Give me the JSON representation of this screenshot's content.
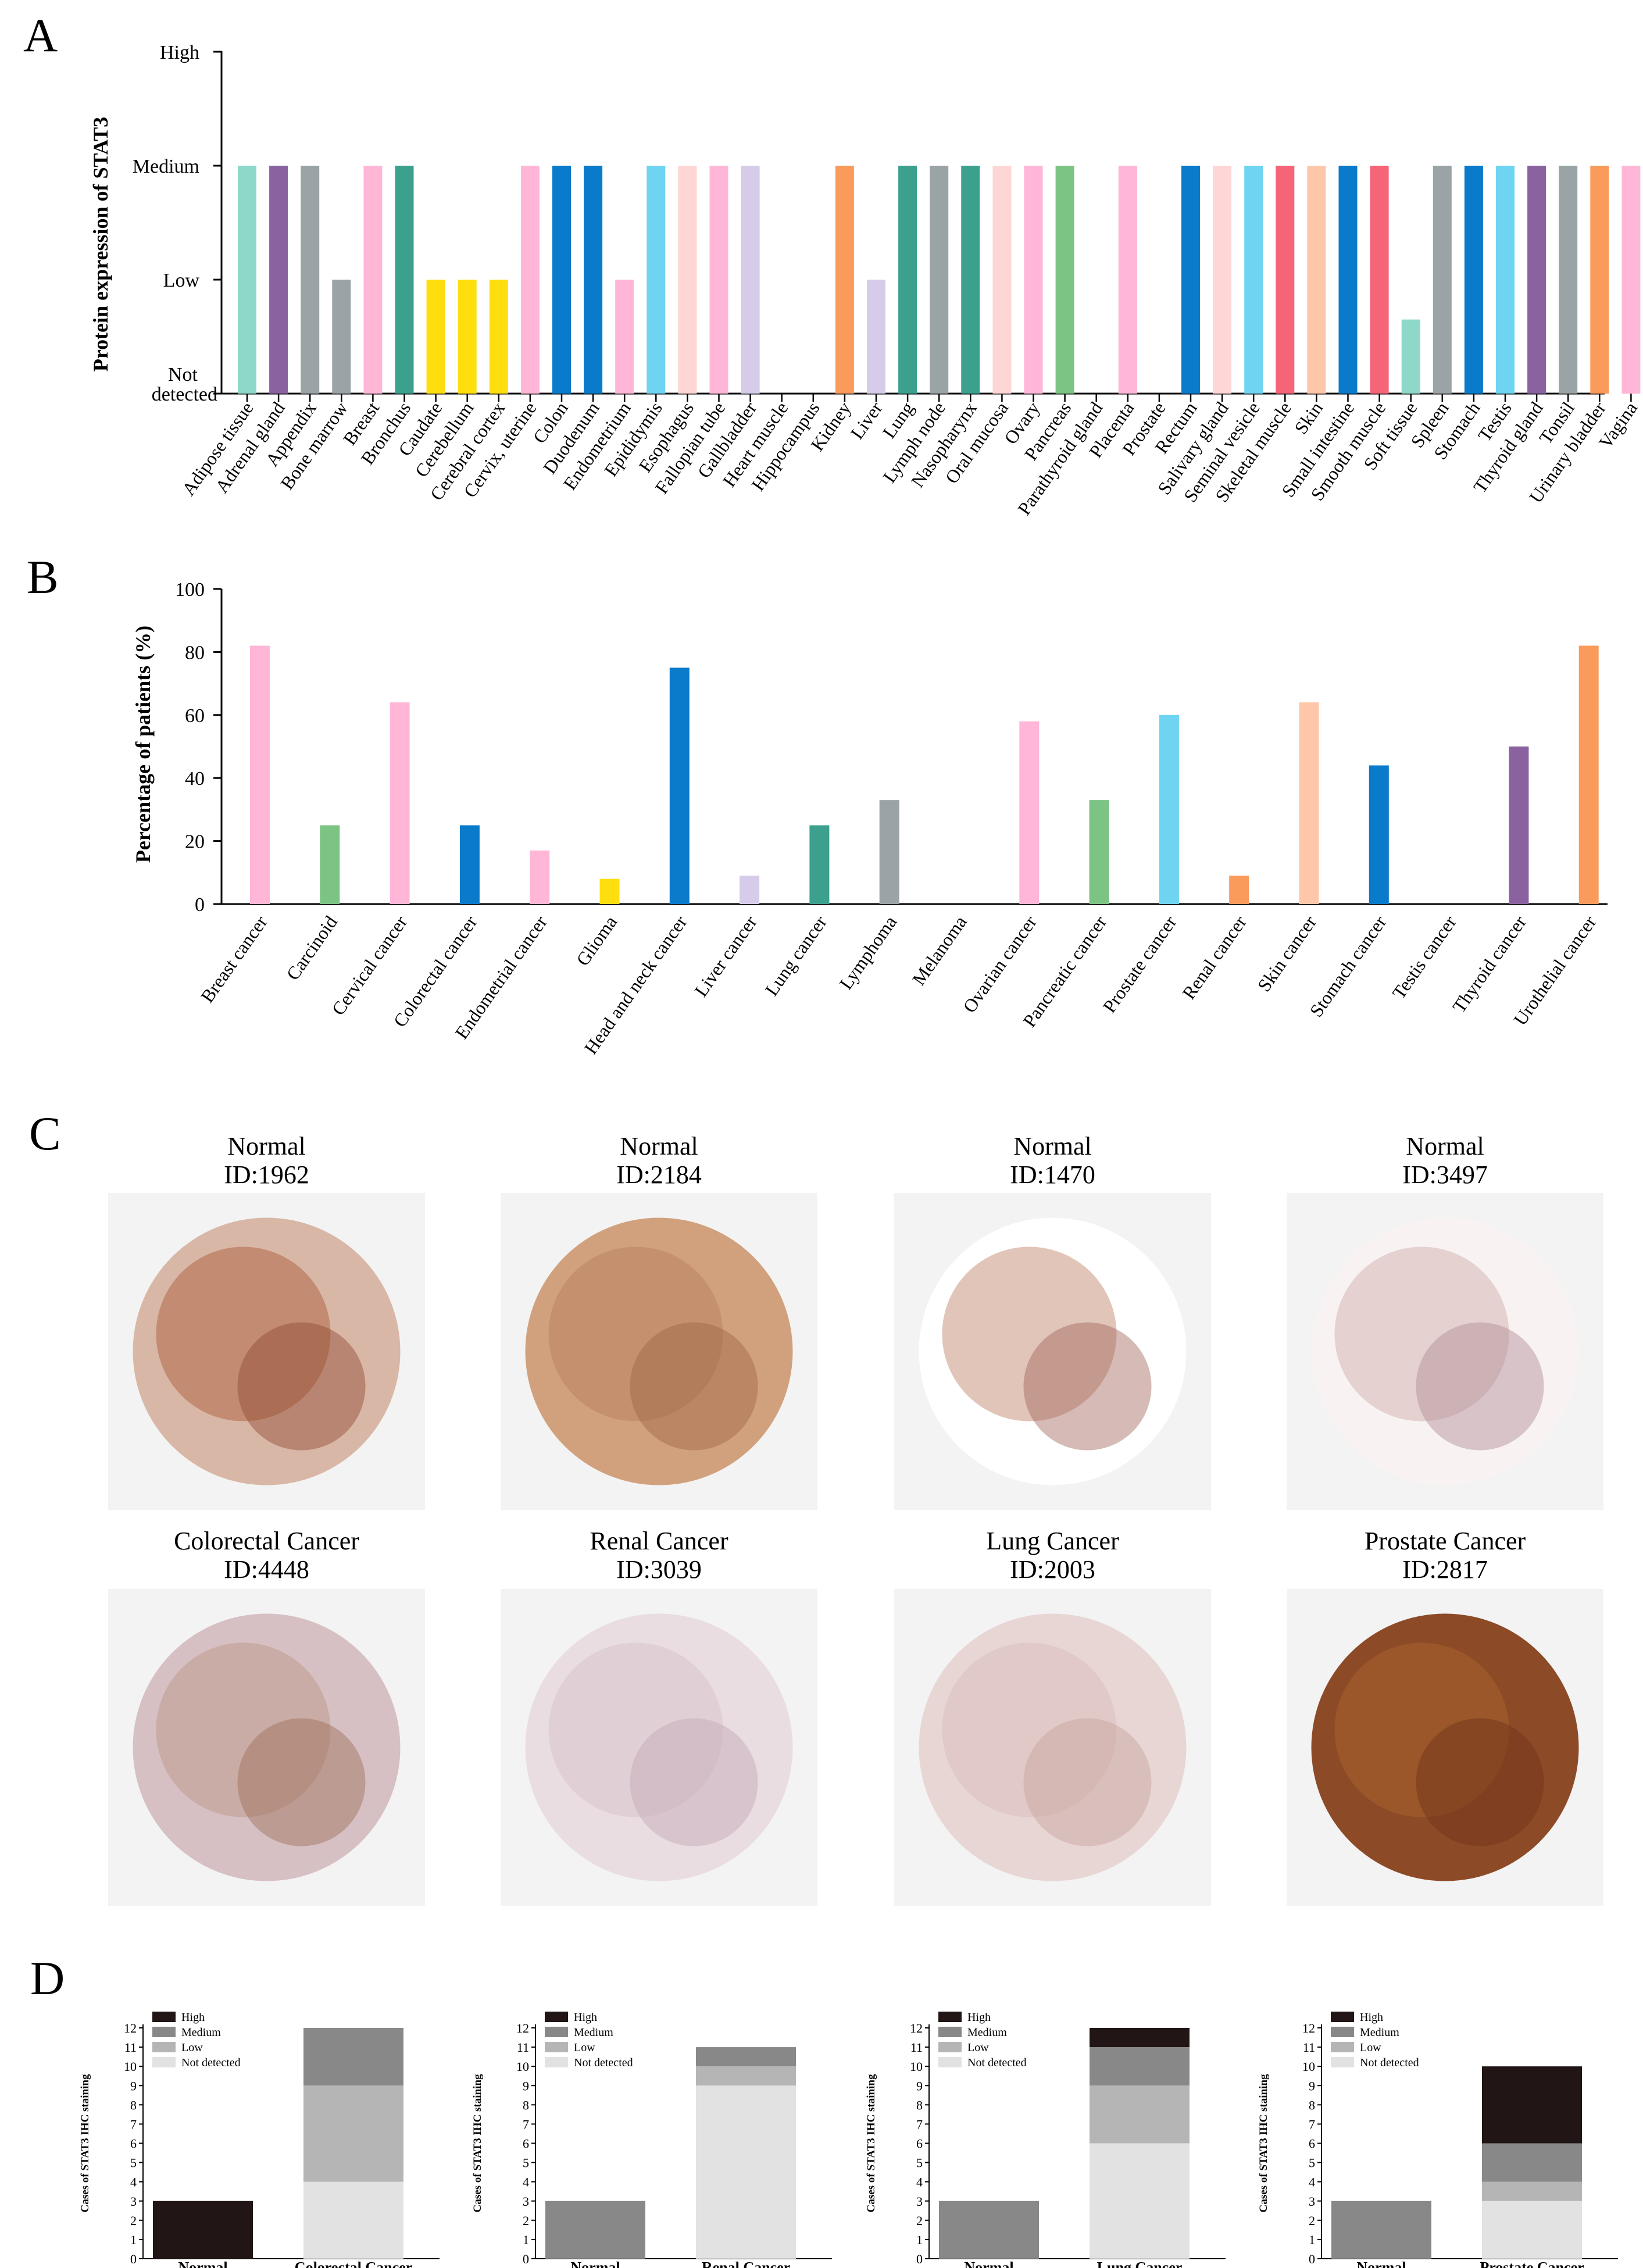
{
  "panel_labels": {
    "a": "A",
    "b": "B",
    "c": "C",
    "d": "D"
  },
  "colors": {
    "teal_light": "#8dd8c8",
    "purple": "#8b62a0",
    "gray": "#9aa3a5",
    "pink": "#ffb6d7",
    "green_teal": "#3ba08e",
    "yellow": "#ffde10",
    "blue": "#0a7acb",
    "sky": "#6fd4f2",
    "peach": "#ffd6d6",
    "lavender": "#d6cbe8",
    "orange": "#fa9b5c",
    "green": "#7cc484",
    "red": "#f66478",
    "salmon": "#ffc7aa",
    "d_high": "#211515",
    "d_medium": "#888888",
    "d_low": "#b5b5b5",
    "d_notdetected": "#e1e2e1"
  },
  "chart_data": [
    {
      "type": "bar",
      "panel": "A",
      "title": "",
      "ylabel": "Protein expression of STAT3",
      "yticks": [
        "Not detected",
        "Low",
        "Medium",
        "High"
      ],
      "ylim": [
        0,
        3
      ],
      "categories": [
        "Adipose tissue",
        "Adrenal gland",
        "Appendix",
        "Bone marrow",
        "Breast",
        "Bronchus",
        "Caudate",
        "Cerebellum",
        "Cerebral cortex",
        "Cervix, uterine",
        "Colon",
        "Duodenum",
        "Endometrium",
        "Epididymis",
        "Esophagus",
        "Fallopian tube",
        "Gallbladder",
        "Heart muscle",
        "Hippocampus",
        "Kidney",
        "Liver",
        "Lung",
        "Lymph node",
        "Nasopharynx",
        "Oral mucosa",
        "Ovary",
        "Pancreas",
        "Parathyroid gland",
        "Placenta",
        "Prostate",
        "Rectum",
        "Salivary gland",
        "Seminal vesicle",
        "Skeletal muscle",
        "Skin",
        "Small intestine",
        "Smooth muscle",
        "Soft tissue",
        "Spleen",
        "Stomach",
        "Testis",
        "Thyroid gland",
        "Tonsil",
        "Urinary bladder",
        "Vagina"
      ],
      "values": [
        2,
        2,
        2,
        1,
        2,
        2,
        1,
        1,
        1,
        2,
        2,
        2,
        1,
        2,
        2,
        2,
        2,
        0,
        0,
        2,
        1,
        2,
        2,
        2,
        2,
        2,
        2,
        0,
        2,
        0,
        2,
        2,
        2,
        2,
        2,
        2,
        2,
        0.65,
        2,
        2,
        2,
        2,
        2,
        2,
        2
      ],
      "colors": [
        "teal_light",
        "purple",
        "gray",
        "gray",
        "pink",
        "green_teal",
        "yellow",
        "yellow",
        "yellow",
        "pink",
        "blue",
        "blue",
        "pink",
        "sky",
        "peach",
        "pink",
        "lavender",
        "lavender",
        "lavender",
        "orange",
        "lavender",
        "green_teal",
        "gray",
        "green_teal",
        "peach",
        "pink",
        "green",
        "pink",
        "pink",
        "pink",
        "blue",
        "peach",
        "sky",
        "red",
        "salmon",
        "blue",
        "red",
        "teal_light",
        "gray",
        "blue",
        "sky",
        "purple",
        "gray",
        "orange",
        "pink"
      ]
    },
    {
      "type": "bar",
      "panel": "B",
      "title": "",
      "ylabel": "Percentage of patients  (%)",
      "yticks": [
        0,
        20,
        40,
        60,
        80,
        100
      ],
      "ylim": [
        0,
        100
      ],
      "categories": [
        "Breast cancer",
        "Carcinoid",
        "Cervical cancer",
        "Colorectal cancer",
        "Endometrial cancer",
        "Glioma",
        "Head and neck cancer",
        "Liver cancer",
        "Lung cancer",
        "Lymphoma",
        "Melanoma",
        "Ovarian cancer",
        "Pancreatic cancer",
        "Prostate cancer",
        "Renal cancer",
        "Skin cancer",
        "Stomach cancer",
        "Testis cancer",
        "Thyroid cancer",
        "Urothelial cancer"
      ],
      "values": [
        82,
        25,
        64,
        25,
        17,
        8,
        75,
        9,
        25,
        33,
        0,
        58,
        33,
        60,
        9,
        64,
        44,
        0,
        50,
        82
      ],
      "colors": [
        "pink",
        "green",
        "pink",
        "blue",
        "pink",
        "yellow",
        "blue",
        "lavender",
        "green_teal",
        "gray",
        "gray",
        "pink",
        "green",
        "sky",
        "orange",
        "salmon",
        "blue",
        "sky",
        "purple",
        "orange"
      ]
    },
    {
      "type": "stacked-bar",
      "panel": "D",
      "ylabel": "Cases of STAT3 IHC staining",
      "ylim": [
        0,
        12
      ],
      "legend": [
        "High",
        "Medium",
        "Low",
        "Not detected"
      ],
      "charts": [
        {
          "categories": [
            "Normal",
            "Colorectal Cancer"
          ],
          "stacks": [
            {
              "High": 3,
              "Medium": 0,
              "Low": 0,
              "Not detected": 0
            },
            {
              "High": 0,
              "Medium": 3,
              "Low": 5,
              "Not detected": 4
            }
          ]
        },
        {
          "categories": [
            "Normal",
            "Renal Cancer"
          ],
          "stacks": [
            {
              "High": 0,
              "Medium": 3,
              "Low": 0,
              "Not detected": 0
            },
            {
              "High": 0,
              "Medium": 1,
              "Low": 1,
              "Not detected": 9
            }
          ]
        },
        {
          "categories": [
            "Normal",
            "Lung Cancer"
          ],
          "stacks": [
            {
              "High": 0,
              "Medium": 3,
              "Low": 0,
              "Not detected": 0
            },
            {
              "High": 1,
              "Medium": 2,
              "Low": 3,
              "Not detected": 6
            }
          ]
        },
        {
          "categories": [
            "Normal",
            "Prostate Cancer"
          ],
          "stacks": [
            {
              "High": 0,
              "Medium": 3,
              "Low": 0,
              "Not detected": 0
            },
            {
              "High": 4,
              "Medium": 2,
              "Low": 1,
              "Not detected": 3
            }
          ]
        }
      ]
    }
  ],
  "panel_c": {
    "images": [
      {
        "title": "Normal",
        "id": "ID:1962"
      },
      {
        "title": "Normal",
        "id": "ID:2184"
      },
      {
        "title": "Normal",
        "id": "ID:1470"
      },
      {
        "title": "Normal",
        "id": "ID:3497"
      },
      {
        "title": "Colorectal Cancer",
        "id": "ID:4448"
      },
      {
        "title": "Renal Cancer",
        "id": "ID:3039"
      },
      {
        "title": "Lung Cancer",
        "id": "ID:2003"
      },
      {
        "title": "Prostate Cancer",
        "id": "ID:2817"
      }
    ]
  }
}
